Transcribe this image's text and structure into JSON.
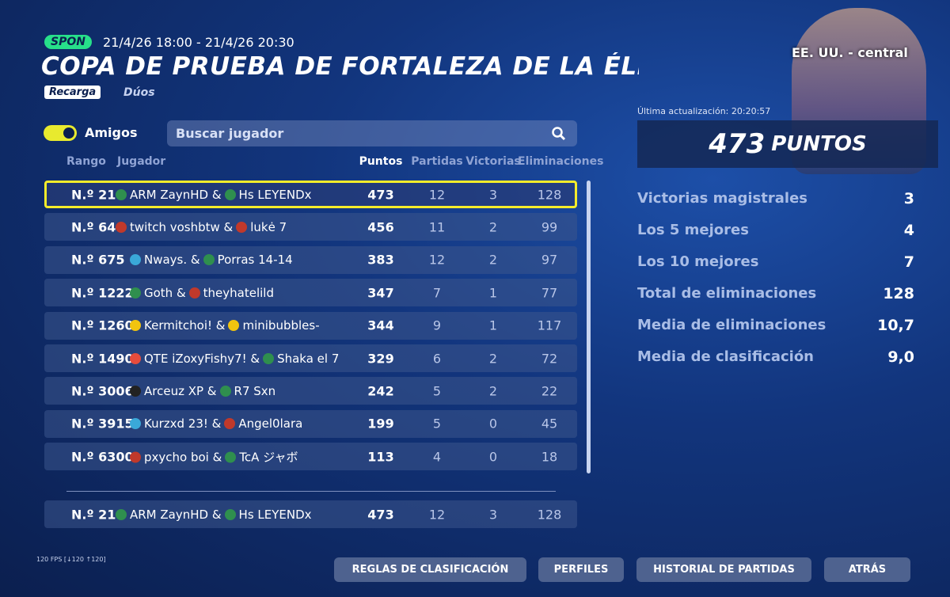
{
  "header": {
    "badge": "SPON",
    "dates": "21/4/26 18:00 - 21/4/26 20:30",
    "title": "COPA DE PRUEBA DE FORTALEZA DE LA ÉLIT",
    "mode": "Recarga",
    "team": "Dúos"
  },
  "region": "EE. UU. - central",
  "filter": {
    "toggle": "Amigos",
    "search_placeholder": "Buscar jugador"
  },
  "table": {
    "columns": [
      "Rango",
      "Jugador",
      "Puntos",
      "Partidas",
      "Victorias",
      "Eliminaciones"
    ],
    "rows": [
      [
        "N.º 21",
        [
          "ARM ZaynHD &",
          "Hs LEYENDx"
        ],
        473,
        12,
        3,
        128
      ],
      [
        "N.º 64",
        [
          "twitch voshbtw &",
          "lukė 7"
        ],
        456,
        11,
        2,
        99
      ],
      [
        "N.º 675",
        [
          "Nways. &",
          "Porras 14-14"
        ],
        383,
        12,
        2,
        97
      ],
      [
        "N.º 1222",
        [
          "Goth &",
          "theyhatelild"
        ],
        347,
        7,
        1,
        77
      ],
      [
        "N.º 1260",
        [
          "Kermitchoi! &",
          "minibubbles-"
        ],
        344,
        9,
        1,
        117
      ],
      [
        "N.º 1490",
        [
          "QTE iZoxyFishy7! &",
          "Shaka el 7"
        ],
        329,
        6,
        2,
        72
      ],
      [
        "N.º 3006",
        [
          "Arceuz XP &",
          "R7 Sxn"
        ],
        242,
        5,
        2,
        22
      ],
      [
        "N.º 3915",
        [
          "Kurzxd 23! &",
          "Angel0lara"
        ],
        199,
        5,
        0,
        45
      ],
      [
        "N.º 6300",
        [
          "pxycho boi &",
          "TcA ジャボ"
        ],
        113,
        4,
        0,
        18
      ]
    ],
    "own_row": [
      "N.º 21",
      [
        "ARM ZaynHD &",
        "Hs LEYENDx"
      ],
      473,
      12,
      3,
      128
    ]
  },
  "summary": {
    "updated": "Última actualización: 20:20:57",
    "points": 473,
    "points_unit": "PUNTOS",
    "stats": [
      {
        "label": "Victorias magistrales",
        "value": 3
      },
      {
        "label": "Los 5 mejores",
        "value": 4
      },
      {
        "label": "Los 10 mejores",
        "value": 7
      },
      {
        "label": "Total de eliminaciones",
        "value": 128
      },
      {
        "label": "Media de eliminaciones",
        "value": "10,7"
      },
      {
        "label": "Media de clasificación",
        "value": "9,0"
      }
    ]
  },
  "buttons": [
    "REGLAS DE CLASIFICACIÓN",
    "PERFILES",
    "HISTORIAL DE PARTIDAS",
    "ATRÁS"
  ],
  "fps": "120 FPS [↓120 ↑120]"
}
